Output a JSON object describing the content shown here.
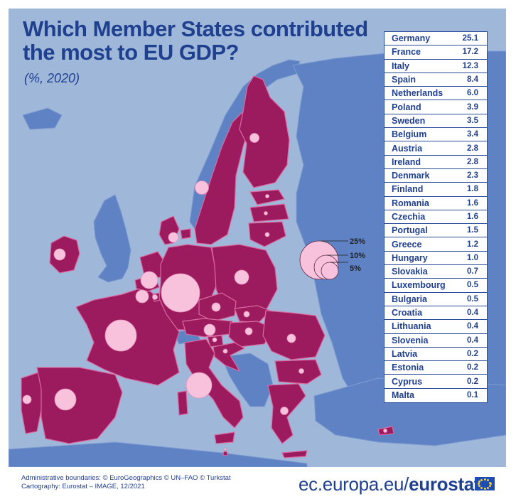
{
  "title_line1": "Which Member States contributed",
  "title_line2": "the most to EU GDP?",
  "subtitle": "(%, 2020)",
  "countries": [
    {
      "name": "Germany",
      "value": "25.1"
    },
    {
      "name": "France",
      "value": "17.2"
    },
    {
      "name": "Italy",
      "value": "12.3"
    },
    {
      "name": "Spain",
      "value": "8.4"
    },
    {
      "name": "Netherlands",
      "value": "6.0"
    },
    {
      "name": "Poland",
      "value": "3.9"
    },
    {
      "name": "Sweden",
      "value": "3.5"
    },
    {
      "name": "Belgium",
      "value": "3.4"
    },
    {
      "name": "Austria",
      "value": "2.8"
    },
    {
      "name": "Ireland",
      "value": "2.8"
    },
    {
      "name": "Denmark",
      "value": "2.3"
    },
    {
      "name": "Finland",
      "value": "1.8"
    },
    {
      "name": "Romania",
      "value": "1.6"
    },
    {
      "name": "Czechia",
      "value": "1.6"
    },
    {
      "name": "Portugal",
      "value": "1.5"
    },
    {
      "name": "Greece",
      "value": "1.2"
    },
    {
      "name": "Hungary",
      "value": "1.0"
    },
    {
      "name": "Slovakia",
      "value": "0.7"
    },
    {
      "name": "Luxembourg",
      "value": "0.5"
    },
    {
      "name": "Bulgaria",
      "value": "0.5"
    },
    {
      "name": "Croatia",
      "value": "0.4"
    },
    {
      "name": "Lithuania",
      "value": "0.4"
    },
    {
      "name": "Slovenia",
      "value": "0.4"
    },
    {
      "name": "Latvia",
      "value": "0.2"
    },
    {
      "name": "Estonia",
      "value": "0.2"
    },
    {
      "name": "Cyprus",
      "value": "0.2"
    },
    {
      "name": "Malta",
      "value": "0.1"
    }
  ],
  "legend": {
    "l25": "25%",
    "l10": "10%",
    "l5": "5%"
  },
  "footer_line1": "Administrative boundaries: © EuroGeographics © UN–FAO © Turkstat",
  "footer_line2": "Cartography: Eurostat – IMAGE, 12/2021",
  "brand_prefix": "ec.europa.eu/",
  "brand_bold": "eurostat",
  "colors": {
    "sea": "#9fb8d9",
    "eu_land": "#9b1b5e",
    "other_land": "#5f82c4",
    "bubble": "#f9c2dc",
    "text": "#1f3f8f"
  }
}
